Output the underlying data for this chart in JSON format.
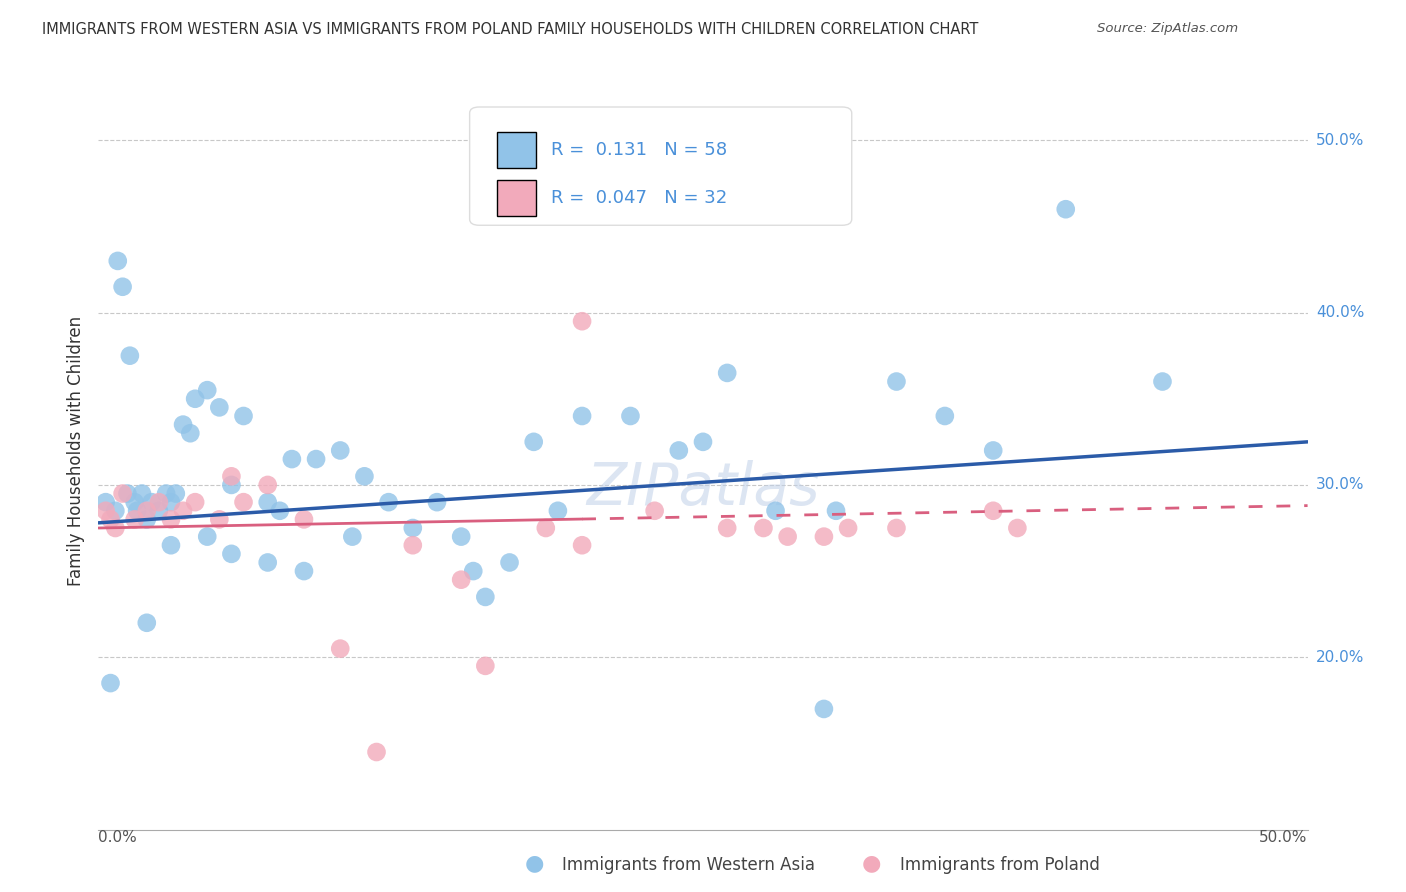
{
  "title": "IMMIGRANTS FROM WESTERN ASIA VS IMMIGRANTS FROM POLAND FAMILY HOUSEHOLDS WITH CHILDREN CORRELATION CHART",
  "source": "Source: ZipAtlas.com",
  "ylabel": "Family Households with Children",
  "legend_label1": "Immigrants from Western Asia",
  "legend_label2": "Immigrants from Poland",
  "r1": 0.131,
  "n1": 58,
  "r2": 0.047,
  "n2": 32,
  "color_blue": "#91C3E8",
  "color_pink": "#F2AABB",
  "line_blue": "#2B5BA8",
  "line_pink": "#D95F7F",
  "background": "#FFFFFF",
  "grid_color": "#C8C8C8",
  "xlim": [
    0,
    50
  ],
  "ylim": [
    10,
    54
  ],
  "yticks": [
    20,
    30,
    40,
    50
  ],
  "ytick_labels": [
    "20.0%",
    "30.0%",
    "40.0%",
    "50.0%"
  ],
  "blue_x": [
    0.3,
    0.5,
    0.7,
    0.8,
    1.0,
    1.2,
    1.3,
    1.5,
    1.6,
    1.8,
    2.0,
    2.2,
    2.5,
    2.8,
    3.0,
    3.2,
    3.5,
    3.8,
    4.0,
    4.5,
    5.0,
    5.5,
    6.0,
    7.0,
    7.5,
    8.0,
    9.0,
    10.0,
    11.0,
    12.0,
    13.0,
    14.0,
    15.0,
    16.0,
    17.0,
    18.0,
    19.0,
    20.0,
    22.0,
    24.0,
    26.0,
    28.0,
    30.0,
    33.0,
    35.0,
    37.0,
    40.0,
    44.0,
    2.0,
    3.0,
    4.5,
    5.5,
    7.0,
    8.5,
    10.5,
    15.5,
    25.0,
    30.5
  ],
  "blue_y": [
    29.0,
    18.5,
    28.5,
    43.0,
    41.5,
    29.5,
    37.5,
    29.0,
    28.5,
    29.5,
    28.0,
    29.0,
    28.5,
    29.5,
    29.0,
    29.5,
    33.5,
    33.0,
    35.0,
    35.5,
    34.5,
    30.0,
    34.0,
    29.0,
    28.5,
    31.5,
    31.5,
    32.0,
    30.5,
    29.0,
    27.5,
    29.0,
    27.0,
    23.5,
    25.5,
    32.5,
    28.5,
    34.0,
    34.0,
    32.0,
    36.5,
    28.5,
    17.0,
    36.0,
    34.0,
    32.0,
    46.0,
    36.0,
    22.0,
    26.5,
    27.0,
    26.0,
    25.5,
    25.0,
    27.0,
    25.0,
    32.5,
    28.5
  ],
  "pink_x": [
    0.3,
    0.5,
    0.7,
    1.0,
    1.5,
    2.0,
    2.5,
    3.0,
    3.5,
    4.0,
    5.0,
    5.5,
    6.0,
    7.0,
    8.5,
    10.0,
    11.5,
    13.0,
    15.0,
    16.0,
    18.5,
    20.0,
    23.0,
    26.0,
    27.5,
    28.5,
    30.0,
    31.0,
    33.0,
    37.0,
    38.0,
    20.0
  ],
  "pink_y": [
    28.5,
    28.0,
    27.5,
    29.5,
    28.0,
    28.5,
    29.0,
    28.0,
    28.5,
    29.0,
    28.0,
    30.5,
    29.0,
    30.0,
    28.0,
    20.5,
    14.5,
    26.5,
    24.5,
    19.5,
    27.5,
    39.5,
    28.5,
    27.5,
    27.5,
    27.0,
    27.0,
    27.5,
    27.5,
    28.5,
    27.5,
    26.5
  ],
  "trend_blue_x0": 0,
  "trend_blue_y0": 27.8,
  "trend_blue_x1": 50,
  "trend_blue_y1": 32.5,
  "trend_pink_x0": 0,
  "trend_pink_y0": 27.5,
  "trend_pink_x1": 50,
  "trend_pink_y1": 28.8
}
